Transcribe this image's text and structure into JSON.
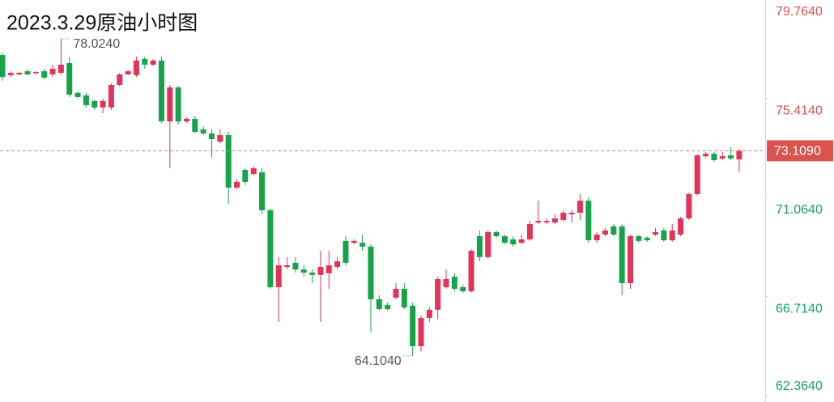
{
  "chart_data": {
    "type": "candlestick",
    "title": "2023.3.29原油小时图",
    "up_color": "#e2335b",
    "down_color": "#17a34a",
    "ylim": [
      62.364,
      79.764
    ],
    "yticks": [
      {
        "value": 62.364,
        "label": "62.3640"
      },
      {
        "value": 66.714,
        "label": "66.7140"
      },
      {
        "value": 71.064,
        "label": "71.0640"
      },
      {
        "value": 75.414,
        "label": "75.4140"
      },
      {
        "value": 79.764,
        "label": "79.7640"
      }
    ],
    "last_price": {
      "value": 73.109,
      "label": "73.1090"
    },
    "max_label": {
      "value": 78.024,
      "label": "78.0240"
    },
    "min_label": {
      "value": 64.104,
      "label": "64.1040"
    },
    "candles": [
      [
        77.31,
        77.42,
        76.18,
        76.35
      ],
      [
        76.43,
        76.6,
        76.35,
        76.53
      ],
      [
        76.46,
        76.57,
        76.43,
        76.53
      ],
      [
        76.6,
        76.71,
        76.43,
        76.46
      ],
      [
        76.53,
        76.6,
        76.46,
        76.57
      ],
      [
        76.6,
        76.71,
        76.25,
        76.32
      ],
      [
        76.46,
        76.89,
        76.35,
        76.71
      ],
      [
        76.53,
        78.024,
        76.43,
        76.89
      ],
      [
        76.96,
        77.24,
        75.47,
        75.57
      ],
      [
        75.65,
        75.72,
        75.4,
        75.47
      ],
      [
        75.54,
        75.65,
        75.01,
        75.11
      ],
      [
        75.29,
        75.36,
        74.9,
        75.01
      ],
      [
        75.01,
        75.4,
        74.76,
        75.29
      ],
      [
        75.01,
        76.07,
        74.9,
        76.0
      ],
      [
        76.0,
        76.53,
        75.93,
        76.46
      ],
      [
        76.46,
        76.67,
        76.43,
        76.6
      ],
      [
        76.43,
        77.24,
        76.35,
        77.07
      ],
      [
        77.14,
        77.24,
        76.71,
        76.89
      ],
      [
        76.89,
        77.14,
        76.82,
        77.07
      ],
      [
        77.07,
        77.24,
        74.33,
        74.4
      ],
      [
        74.4,
        76.0,
        72.34,
        75.89
      ],
      [
        75.89,
        75.96,
        74.26,
        74.4
      ],
      [
        74.4,
        74.58,
        74.33,
        74.51
      ],
      [
        74.51,
        74.65,
        73.87,
        73.94
      ],
      [
        74.05,
        74.19,
        73.8,
        73.87
      ],
      [
        73.87,
        74.05,
        72.8,
        73.62
      ],
      [
        73.51,
        74.05,
        73.44,
        73.8
      ],
      [
        73.8,
        73.94,
        70.78,
        71.49
      ],
      [
        71.49,
        71.85,
        71.42,
        71.74
      ],
      [
        72.27,
        72.34,
        71.6,
        71.74
      ],
      [
        72.09,
        72.45,
        72.02,
        72.34
      ],
      [
        72.16,
        72.34,
        70.32,
        70.5
      ],
      [
        70.5,
        70.57,
        67.05,
        67.12
      ],
      [
        67.12,
        68.44,
        65.59,
        68.08
      ],
      [
        68.01,
        68.44,
        67.9,
        68.08
      ],
      [
        68.19,
        68.44,
        67.76,
        67.9
      ],
      [
        67.9,
        68.08,
        67.58,
        67.76
      ],
      [
        67.76,
        67.9,
        67.3,
        67.66
      ],
      [
        67.66,
        68.72,
        65.59,
        68.01
      ],
      [
        67.73,
        68.72,
        67.05,
        68.08
      ],
      [
        68.01,
        68.44,
        67.9,
        68.26
      ],
      [
        69.15,
        69.36,
        68.08,
        68.19
      ],
      [
        69.07,
        69.22,
        69.0,
        69.15
      ],
      [
        69.07,
        69.43,
        68.72,
        68.9
      ],
      [
        68.9,
        69.0,
        65.17,
        66.59
      ],
      [
        66.59,
        66.77,
        66.09,
        66.16
      ],
      [
        66.34,
        66.45,
        66.09,
        66.16
      ],
      [
        66.66,
        67.3,
        66.59,
        67.05
      ],
      [
        67.05,
        67.3,
        66.16,
        66.23
      ],
      [
        66.31,
        66.45,
        64.104,
        64.53
      ],
      [
        64.53,
        65.88,
        64.3,
        65.77
      ],
      [
        65.77,
        66.23,
        65.59,
        66.13
      ],
      [
        66.13,
        67.58,
        65.7,
        67.48
      ],
      [
        67.12,
        67.9,
        67.05,
        67.48
      ],
      [
        67.58,
        67.73,
        66.94,
        67.05
      ],
      [
        67.12,
        67.23,
        66.87,
        66.94
      ],
      [
        66.94,
        68.79,
        66.87,
        68.72
      ],
      [
        69.36,
        69.61,
        68.26,
        68.44
      ],
      [
        68.44,
        69.61,
        68.37,
        69.54
      ],
      [
        69.54,
        69.61,
        69.29,
        69.36
      ],
      [
        69.36,
        69.43,
        69.0,
        69.07
      ],
      [
        69.22,
        69.36,
        68.9,
        69.0
      ],
      [
        69.07,
        69.43,
        69.0,
        69.22
      ],
      [
        69.22,
        70.03,
        69.15,
        69.89
      ],
      [
        69.96,
        70.92,
        69.89,
        70.03
      ],
      [
        69.96,
        70.14,
        69.89,
        70.03
      ],
      [
        69.96,
        70.32,
        69.89,
        70.14
      ],
      [
        70.07,
        70.5,
        70.0,
        70.39
      ],
      [
        70.32,
        70.5,
        69.96,
        70.39
      ],
      [
        70.39,
        71.21,
        70.07,
        70.92
      ],
      [
        70.92,
        71.07,
        69.07,
        69.18
      ],
      [
        69.18,
        69.54,
        69.07,
        69.43
      ],
      [
        69.43,
        69.72,
        69.36,
        69.61
      ],
      [
        69.79,
        69.89,
        69.36,
        69.43
      ],
      [
        69.79,
        69.89,
        66.77,
        67.3
      ],
      [
        67.3,
        69.43,
        67.05,
        69.36
      ],
      [
        69.36,
        69.43,
        69.07,
        69.15
      ],
      [
        69.29,
        69.36,
        69.11,
        69.18
      ],
      [
        69.43,
        69.72,
        69.36,
        69.54
      ],
      [
        69.61,
        69.72,
        69.11,
        69.18
      ],
      [
        69.18,
        69.89,
        69.11,
        69.61
      ],
      [
        69.43,
        70.21,
        69.36,
        70.14
      ],
      [
        70.14,
        71.28,
        70.07,
        71.21
      ],
      [
        71.21,
        72.98,
        71.14,
        72.91
      ],
      [
        72.87,
        73.05,
        72.8,
        72.98
      ],
      [
        72.98,
        73.05,
        72.63,
        72.7
      ],
      [
        72.77,
        73.05,
        72.7,
        72.87
      ],
      [
        72.91,
        73.26,
        72.7,
        72.77
      ],
      [
        72.73,
        73.19,
        72.16,
        73.109
      ]
    ]
  }
}
